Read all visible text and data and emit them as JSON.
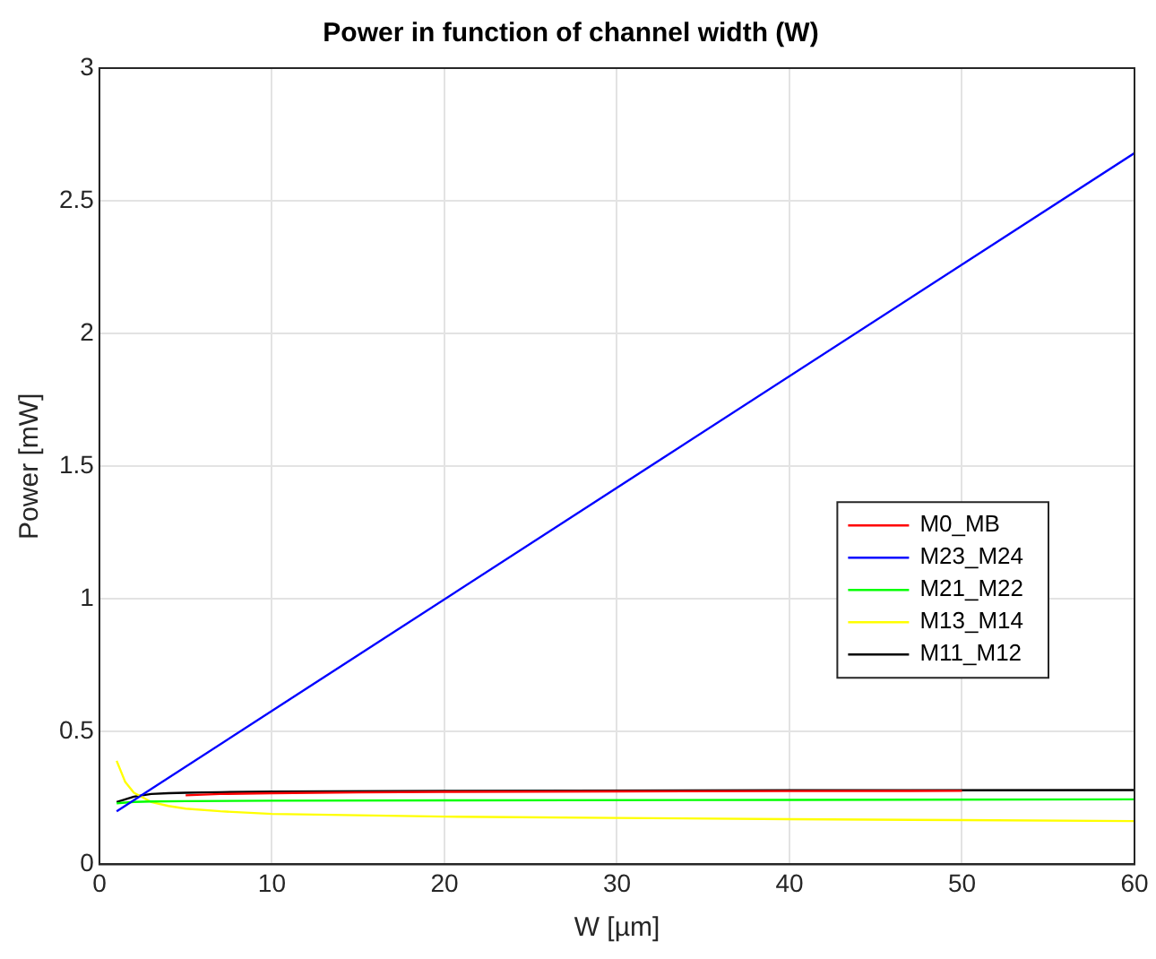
{
  "chart_data": {
    "type": "line",
    "title": "Power in function of channel width (W)",
    "xlabel": "W [µm]",
    "ylabel": "Power [mW]",
    "xlim": [
      0,
      60
    ],
    "xticks": [
      0,
      10,
      20,
      30,
      40,
      50,
      60
    ],
    "ylim": [
      0,
      3
    ],
    "yticks": [
      0,
      0.5,
      1,
      1.5,
      2,
      2.5,
      3
    ],
    "grid": true,
    "legend": "right",
    "marker": "none",
    "line_style": "solid",
    "series": [
      {
        "name": "M0_MB",
        "color": "#ff0000",
        "x": [
          5,
          7,
          10,
          15,
          20,
          30,
          40,
          50
        ],
        "values": [
          0.26,
          0.265,
          0.268,
          0.271,
          0.273,
          0.275,
          0.276,
          0.277
        ]
      },
      {
        "name": "M23_M24",
        "color": "#0000ff",
        "x": [
          1,
          60
        ],
        "values": [
          0.2,
          2.68
        ]
      },
      {
        "name": "M21_M22",
        "color": "#00ff00",
        "x": [
          1,
          2,
          3,
          5,
          10,
          20,
          40,
          60
        ],
        "values": [
          0.23,
          0.235,
          0.237,
          0.238,
          0.24,
          0.241,
          0.243,
          0.245
        ]
      },
      {
        "name": "M13_M14",
        "color": "#ffff00",
        "x": [
          1,
          1.5,
          2,
          3,
          4,
          5,
          7,
          10,
          15,
          20,
          30,
          40,
          50,
          60
        ],
        "values": [
          0.39,
          0.31,
          0.27,
          0.235,
          0.22,
          0.21,
          0.2,
          0.19,
          0.185,
          0.18,
          0.175,
          0.17,
          0.167,
          0.163
        ]
      },
      {
        "name": "M11_M12",
        "color": "#000000",
        "x": [
          1,
          2,
          3,
          4,
          5,
          7,
          10,
          20,
          40,
          60
        ],
        "values": [
          0.235,
          0.255,
          0.265,
          0.268,
          0.27,
          0.272,
          0.274,
          0.277,
          0.279,
          0.28
        ]
      }
    ]
  }
}
